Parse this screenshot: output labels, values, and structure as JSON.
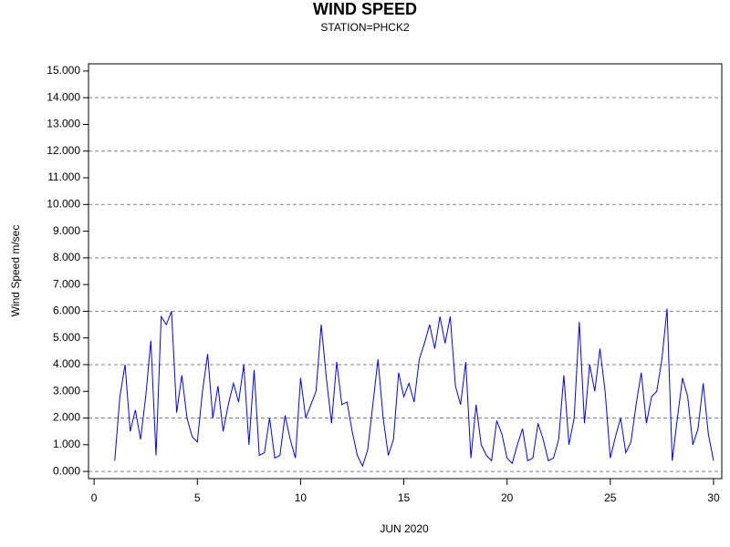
{
  "chart_data": {
    "type": "line",
    "title": "WIND SPEED",
    "subtitle": "STATION=PHCK2",
    "x_label": "JUN 2020",
    "y_label": "Wind Speed m/sec",
    "x": [
      1,
      1.25,
      1.5,
      1.75,
      2,
      2.25,
      2.5,
      2.75,
      3,
      3.25,
      3.5,
      3.75,
      4,
      4.25,
      4.5,
      4.75,
      5,
      5.25,
      5.5,
      5.75,
      6,
      6.25,
      6.5,
      6.75,
      7,
      7.25,
      7.5,
      7.75,
      8,
      8.25,
      8.5,
      8.75,
      9,
      9.25,
      9.5,
      9.75,
      10,
      10.25,
      10.5,
      10.75,
      11,
      11.25,
      11.5,
      11.75,
      12,
      12.25,
      12.5,
      12.75,
      13,
      13.25,
      13.5,
      13.75,
      14,
      14.25,
      14.5,
      14.75,
      15,
      15.25,
      15.5,
      15.75,
      16,
      16.25,
      16.5,
      16.75,
      17,
      17.25,
      17.5,
      17.75,
      18,
      18.25,
      18.5,
      18.75,
      19,
      19.25,
      19.5,
      19.75,
      20,
      20.25,
      20.5,
      20.75,
      21,
      21.25,
      21.5,
      21.75,
      22,
      22.25,
      22.5,
      22.75,
      23,
      23.25,
      23.5,
      23.75,
      24,
      24.25,
      24.5,
      24.75,
      25,
      25.25,
      25.5,
      25.75,
      26,
      26.25,
      26.5,
      26.75,
      27,
      27.25,
      27.5,
      27.75,
      28,
      28.25,
      28.5,
      28.75,
      29,
      29.25,
      29.5,
      29.75,
      30
    ],
    "series": [
      {
        "name": "Wind Speed",
        "color": "#0000ff",
        "values": [
          0.4,
          2.8,
          4.0,
          1.5,
          2.3,
          1.2,
          2.8,
          4.9,
          0.6,
          5.8,
          5.5,
          6.0,
          2.2,
          3.6,
          2.0,
          1.3,
          1.1,
          3.0,
          4.4,
          2.0,
          3.2,
          1.5,
          2.5,
          3.3,
          2.6,
          4.0,
          1.0,
          3.8,
          0.6,
          0.7,
          2.0,
          0.5,
          0.6,
          2.1,
          1.2,
          0.5,
          3.5,
          2.0,
          2.5,
          3.0,
          5.5,
          3.5,
          1.8,
          4.1,
          2.5,
          2.6,
          1.5,
          0.6,
          0.2,
          0.8,
          2.5,
          4.2,
          2.0,
          0.6,
          1.2,
          3.7,
          2.8,
          3.3,
          2.6,
          4.2,
          4.8,
          5.5,
          4.6,
          5.8,
          4.8,
          5.8,
          3.2,
          2.5,
          4.1,
          0.5,
          2.5,
          1.0,
          0.6,
          0.4,
          1.9,
          1.4,
          0.5,
          0.3,
          1.0,
          1.6,
          0.4,
          0.5,
          1.8,
          1.2,
          0.4,
          0.5,
          1.2,
          3.6,
          1.0,
          2.0,
          5.6,
          1.8,
          4.0,
          3.0,
          4.6,
          3.0,
          0.5,
          1.3,
          2.0,
          0.7,
          1.1,
          2.5,
          3.7,
          1.8,
          2.8,
          3.0,
          4.2,
          6.1,
          0.4,
          2.0,
          3.5,
          2.8,
          1.0,
          1.6,
          3.3,
          1.4,
          0.4
        ]
      }
    ],
    "xlim": [
      -0.27,
      30.4
    ],
    "xticks": [
      0,
      5,
      10,
      15,
      20,
      25,
      30
    ],
    "ylim": [
      -0.27,
      15.27
    ],
    "yticks": [
      {
        "value": 0,
        "label": "0.000"
      },
      {
        "value": 1,
        "label": "1.000"
      },
      {
        "value": 2,
        "label": "2.000"
      },
      {
        "value": 3,
        "label": "3.000"
      },
      {
        "value": 4,
        "label": "4.000"
      },
      {
        "value": 5,
        "label": "5.000"
      },
      {
        "value": 6,
        "label": "6.000"
      },
      {
        "value": 7,
        "label": "7.000"
      },
      {
        "value": 8,
        "label": "8.000"
      },
      {
        "value": 9,
        "label": "9.000"
      },
      {
        "value": 10,
        "label": "10.000"
      },
      {
        "value": 11,
        "label": "11.000"
      },
      {
        "value": 12,
        "label": "12.000"
      },
      {
        "value": 13,
        "label": "13.000"
      },
      {
        "value": 14,
        "label": "14.000"
      },
      {
        "value": 15,
        "label": "15.000"
      }
    ],
    "grid": true
  }
}
